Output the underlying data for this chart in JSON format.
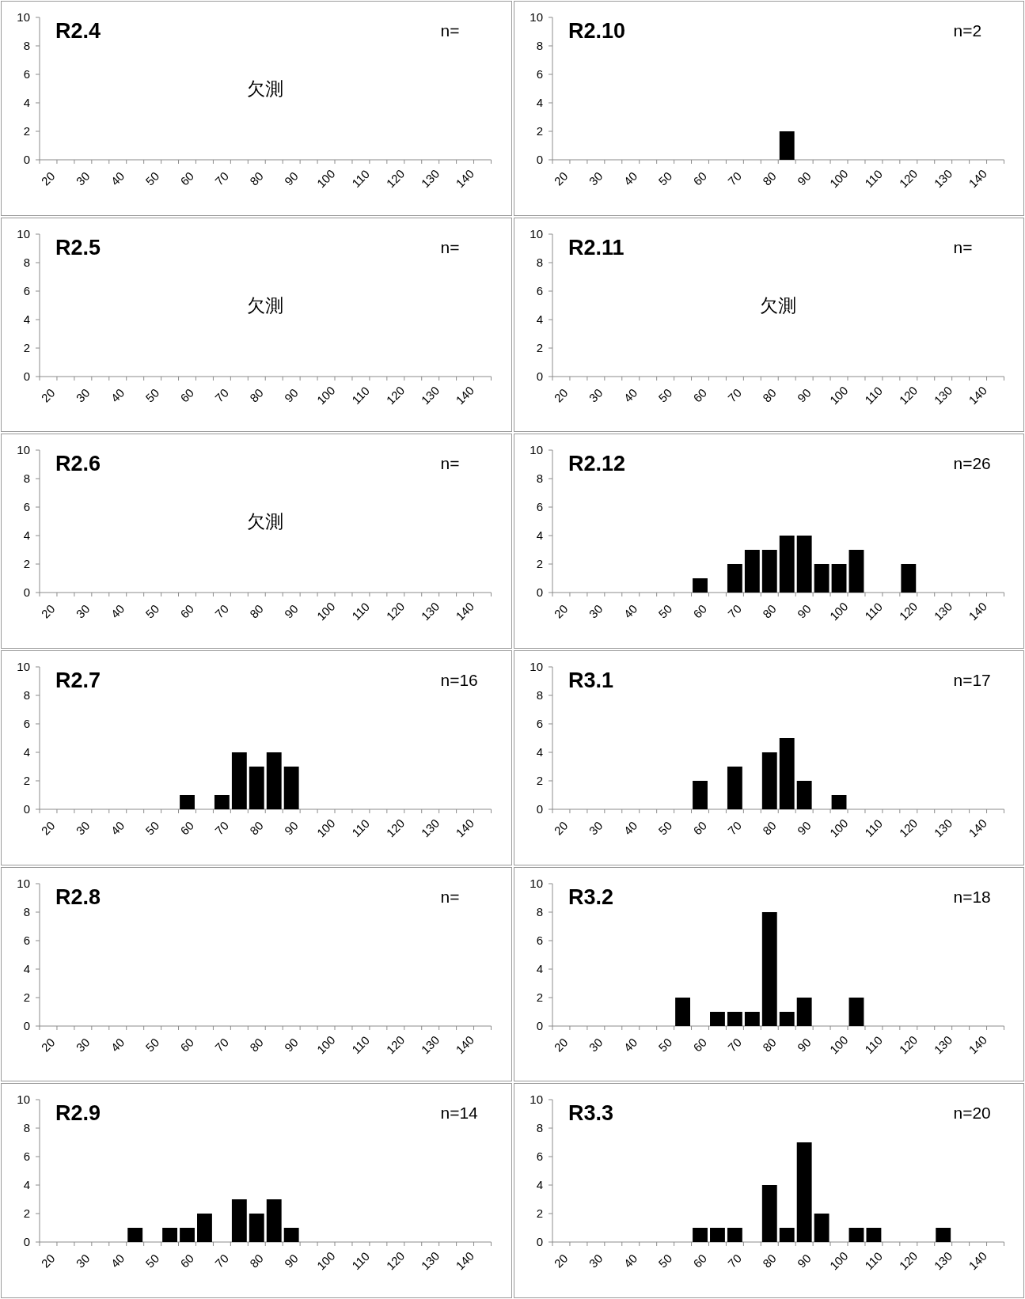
{
  "chart_data": [
    {
      "type": "bar",
      "title": "R2.4",
      "annotations": [
        "n=",
        "欠測"
      ],
      "categories": [
        "20",
        null,
        "30",
        null,
        "40",
        null,
        "50",
        null,
        "60",
        null,
        "70",
        null,
        "80",
        null,
        "90",
        null,
        "100",
        null,
        "110",
        null,
        "120",
        null,
        "130",
        null,
        "140",
        null
      ],
      "values": [
        null,
        null,
        null,
        null,
        null,
        null,
        null,
        null,
        null,
        null,
        null,
        null,
        null,
        null,
        null,
        null,
        null,
        null,
        null,
        null,
        null,
        null,
        null,
        null,
        null,
        null
      ],
      "ylim": [
        0,
        10
      ],
      "yticks": [
        0,
        2,
        4,
        6,
        8,
        10
      ]
    },
    {
      "type": "bar",
      "title": "R2.10",
      "annotations": [
        "n=2"
      ],
      "categories": [
        "20",
        null,
        "30",
        null,
        "40",
        null,
        "50",
        null,
        "60",
        null,
        "70",
        null,
        "80",
        null,
        "90",
        null,
        "100",
        null,
        "110",
        null,
        "120",
        null,
        "130",
        null,
        "140",
        null
      ],
      "values": [
        0,
        0,
        0,
        0,
        0,
        0,
        0,
        0,
        0,
        0,
        0,
        0,
        0,
        2,
        0,
        0,
        0,
        0,
        0,
        0,
        0,
        0,
        0,
        0,
        0,
        0
      ],
      "color": "#000000",
      "ylim": [
        0,
        10
      ],
      "yticks": [
        0,
        2,
        4,
        6,
        8,
        10
      ]
    },
    {
      "type": "bar",
      "title": "R2.5",
      "annotations": [
        "n=",
        "欠測"
      ],
      "categories": [
        "20",
        null,
        "30",
        null,
        "40",
        null,
        "50",
        null,
        "60",
        null,
        "70",
        null,
        "80",
        null,
        "90",
        null,
        "100",
        null,
        "110",
        null,
        "120",
        null,
        "130",
        null,
        "140",
        null
      ],
      "values": [
        null,
        null,
        null,
        null,
        null,
        null,
        null,
        null,
        null,
        null,
        null,
        null,
        null,
        null,
        null,
        null,
        null,
        null,
        null,
        null,
        null,
        null,
        null,
        null,
        null,
        null
      ],
      "ylim": [
        0,
        10
      ],
      "yticks": [
        0,
        2,
        4,
        6,
        8,
        10
      ]
    },
    {
      "type": "bar",
      "title": "R2.11",
      "annotations": [
        "n=",
        "欠測"
      ],
      "categories": [
        "20",
        null,
        "30",
        null,
        "40",
        null,
        "50",
        null,
        "60",
        null,
        "70",
        null,
        "80",
        null,
        "90",
        null,
        "100",
        null,
        "110",
        null,
        "120",
        null,
        "130",
        null,
        "140",
        null
      ],
      "values": [
        null,
        null,
        null,
        null,
        null,
        null,
        null,
        null,
        null,
        null,
        null,
        null,
        null,
        null,
        null,
        null,
        null,
        null,
        null,
        null,
        null,
        null,
        null,
        null,
        null,
        null
      ],
      "ylim": [
        0,
        10
      ],
      "yticks": [
        0,
        2,
        4,
        6,
        8,
        10
      ]
    },
    {
      "type": "bar",
      "title": "R2.6",
      "annotations": [
        "n=",
        "欠測"
      ],
      "categories": [
        "20",
        null,
        "30",
        null,
        "40",
        null,
        "50",
        null,
        "60",
        null,
        "70",
        null,
        "80",
        null,
        "90",
        null,
        "100",
        null,
        "110",
        null,
        "120",
        null,
        "130",
        null,
        "140",
        null
      ],
      "values": [
        null,
        null,
        null,
        null,
        null,
        null,
        null,
        null,
        null,
        null,
        null,
        null,
        null,
        null,
        null,
        null,
        null,
        null,
        null,
        null,
        null,
        null,
        null,
        null,
        null,
        null
      ],
      "ylim": [
        0,
        10
      ],
      "yticks": [
        0,
        2,
        4,
        6,
        8,
        10
      ]
    },
    {
      "type": "bar",
      "title": "R2.12",
      "annotations": [
        "n=26"
      ],
      "categories": [
        "20",
        null,
        "30",
        null,
        "40",
        null,
        "50",
        null,
        "60",
        null,
        "70",
        null,
        "80",
        null,
        "90",
        null,
        "100",
        null,
        "110",
        null,
        "120",
        null,
        "130",
        null,
        "140",
        null
      ],
      "values": [
        0,
        0,
        0,
        0,
        0,
        0,
        0,
        0,
        1,
        0,
        2,
        3,
        3,
        4,
        4,
        2,
        2,
        3,
        0,
        0,
        2,
        0,
        0,
        0,
        0,
        0
      ],
      "color": "#000000",
      "ylim": [
        0,
        10
      ],
      "yticks": [
        0,
        2,
        4,
        6,
        8,
        10
      ]
    },
    {
      "type": "bar",
      "title": "R2.7",
      "annotations": [
        "n=16"
      ],
      "categories": [
        "20",
        null,
        "30",
        null,
        "40",
        null,
        "50",
        null,
        "60",
        null,
        "70",
        null,
        "80",
        null,
        "90",
        null,
        "100",
        null,
        "110",
        null,
        "120",
        null,
        "130",
        null,
        "140",
        null
      ],
      "values": [
        0,
        0,
        0,
        0,
        0,
        0,
        0,
        0,
        1,
        0,
        1,
        4,
        3,
        4,
        3,
        0,
        0,
        0,
        0,
        0,
        0,
        0,
        0,
        0,
        0,
        0
      ],
      "color": "#000000",
      "ylim": [
        0,
        10
      ],
      "yticks": [
        0,
        2,
        4,
        6,
        8,
        10
      ]
    },
    {
      "type": "bar",
      "title": "R3.1",
      "annotations": [
        "n=17"
      ],
      "categories": [
        "20",
        null,
        "30",
        null,
        "40",
        null,
        "50",
        null,
        "60",
        null,
        "70",
        null,
        "80",
        null,
        "90",
        null,
        "100",
        null,
        "110",
        null,
        "120",
        null,
        "130",
        null,
        "140",
        null
      ],
      "values": [
        0,
        0,
        0,
        0,
        0,
        0,
        0,
        0,
        2,
        0,
        3,
        0,
        4,
        5,
        2,
        0,
        1,
        0,
        0,
        0,
        0,
        0,
        0,
        0,
        0,
        0
      ],
      "color": "#000000",
      "ylim": [
        0,
        10
      ],
      "yticks": [
        0,
        2,
        4,
        6,
        8,
        10
      ]
    },
    {
      "type": "bar",
      "title": "R2.8",
      "annotations": [
        "n="
      ],
      "categories": [
        "20",
        null,
        "30",
        null,
        "40",
        null,
        "50",
        null,
        "60",
        null,
        "70",
        null,
        "80",
        null,
        "90",
        null,
        "100",
        null,
        "110",
        null,
        "120",
        null,
        "130",
        null,
        "140",
        null
      ],
      "values": [
        null,
        null,
        null,
        null,
        null,
        null,
        null,
        null,
        null,
        null,
        null,
        null,
        null,
        null,
        null,
        null,
        null,
        null,
        null,
        null,
        null,
        null,
        null,
        null,
        null,
        null
      ],
      "ylim": [
        0,
        10
      ],
      "yticks": [
        0,
        2,
        4,
        6,
        8,
        10
      ]
    },
    {
      "type": "bar",
      "title": "R3.2",
      "annotations": [
        "n=18"
      ],
      "categories": [
        "20",
        null,
        "30",
        null,
        "40",
        null,
        "50",
        null,
        "60",
        null,
        "70",
        null,
        "80",
        null,
        "90",
        null,
        "100",
        null,
        "110",
        null,
        "120",
        null,
        "130",
        null,
        "140",
        null
      ],
      "values": [
        0,
        0,
        0,
        0,
        0,
        0,
        0,
        2,
        0,
        1,
        1,
        1,
        8,
        1,
        2,
        0,
        0,
        2,
        0,
        0,
        0,
        0,
        0,
        0,
        0,
        0
      ],
      "color": "#000000",
      "ylim": [
        0,
        10
      ],
      "yticks": [
        0,
        2,
        4,
        6,
        8,
        10
      ]
    },
    {
      "type": "bar",
      "title": "R2.9",
      "annotations": [
        "n=14"
      ],
      "categories": [
        "20",
        null,
        "30",
        null,
        "40",
        null,
        "50",
        null,
        "60",
        null,
        "70",
        null,
        "80",
        null,
        "90",
        null,
        "100",
        null,
        "110",
        null,
        "120",
        null,
        "130",
        null,
        "140",
        null
      ],
      "values": [
        0,
        0,
        0,
        0,
        0,
        1,
        0,
        1,
        1,
        2,
        0,
        3,
        2,
        3,
        1,
        0,
        0,
        0,
        0,
        0,
        0,
        0,
        0,
        0,
        0,
        0
      ],
      "color": "#000000",
      "ylim": [
        0,
        10
      ],
      "yticks": [
        0,
        2,
        4,
        6,
        8,
        10
      ]
    },
    {
      "type": "bar",
      "title": "R3.3",
      "annotations": [
        "n=20"
      ],
      "categories": [
        "20",
        null,
        "30",
        null,
        "40",
        null,
        "50",
        null,
        "60",
        null,
        "70",
        null,
        "80",
        null,
        "90",
        null,
        "100",
        null,
        "110",
        null,
        "120",
        null,
        "130",
        null,
        "140",
        null
      ],
      "values": [
        0,
        0,
        0,
        0,
        0,
        0,
        0,
        0,
        1,
        1,
        1,
        0,
        4,
        1,
        7,
        2,
        0,
        1,
        1,
        0,
        0,
        0,
        1,
        0,
        0,
        0
      ],
      "color": "#000000",
      "ylim": [
        0,
        10
      ],
      "yticks": [
        0,
        2,
        4,
        6,
        8,
        10
      ]
    }
  ]
}
